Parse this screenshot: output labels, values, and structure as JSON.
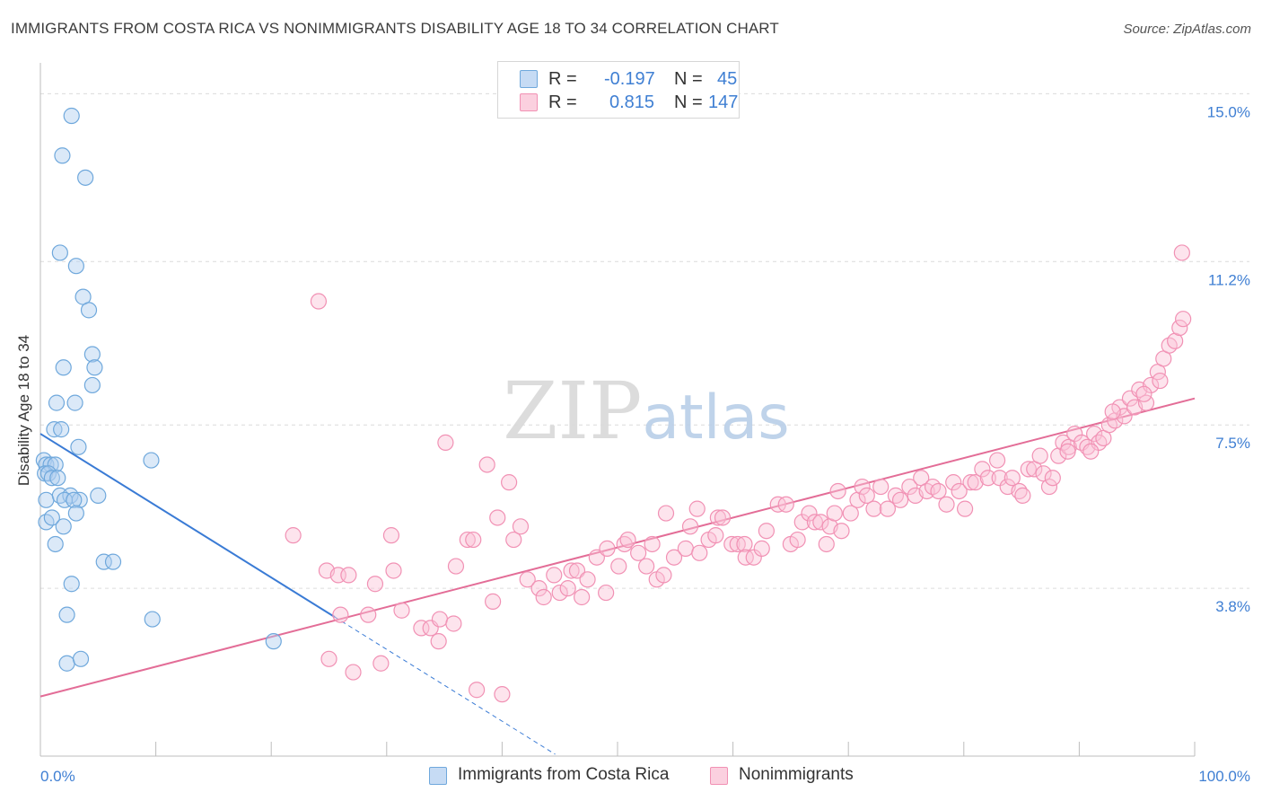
{
  "title": "IMMIGRANTS FROM COSTA RICA VS NONIMMIGRANTS DISABILITY AGE 18 TO 34 CORRELATION CHART",
  "source": "Source: ZipAtlas.com",
  "watermark": "ZIPatlas",
  "legend": {
    "blue": {
      "r_label": "R =",
      "r_value": "-0.197",
      "n_label": "N =",
      "n_value": "45"
    },
    "pink": {
      "r_label": "R =",
      "r_value": "0.815",
      "n_label": "N =",
      "n_value": "147"
    }
  },
  "colors": {
    "blue": "#6fa8dc",
    "blue_line": "#3a7bd5",
    "pink": "#f191b4",
    "pink_line": "#e36d97",
    "tick_label": "#3f7fd3"
  },
  "chart_data": {
    "type": "scatter",
    "xlabel": "",
    "ylabel": "Disability Age 18 to 34",
    "xlim": [
      0,
      100
    ],
    "ylim": [
      0,
      15.7
    ],
    "x_tick_labels": [
      "0.0%",
      "100.0%"
    ],
    "y_ticks": [
      3.8,
      7.5,
      11.2,
      15.0
    ],
    "y_tick_labels": [
      "3.8%",
      "7.5%",
      "11.2%",
      "15.0%"
    ],
    "grid": true,
    "legend_position": "bottom",
    "series": [
      {
        "name": "Immigrants from Costa Rica",
        "color": "#6fa8dc",
        "trend": {
          "x0": 0,
          "y0": 7.3,
          "x1": 25.5,
          "y1": 3.15,
          "dash_to_x": 44.6
        },
        "points": [
          [
            2.7,
            14.5
          ],
          [
            1.9,
            13.6
          ],
          [
            3.9,
            13.1
          ],
          [
            1.7,
            11.4
          ],
          [
            3.1,
            11.1
          ],
          [
            3.7,
            10.4
          ],
          [
            4.2,
            10.1
          ],
          [
            4.5,
            9.1
          ],
          [
            2.0,
            8.8
          ],
          [
            4.7,
            8.8
          ],
          [
            4.5,
            8.4
          ],
          [
            1.4,
            8.0
          ],
          [
            3.0,
            8.0
          ],
          [
            1.2,
            7.4
          ],
          [
            1.8,
            7.4
          ],
          [
            3.3,
            7.0
          ],
          [
            0.3,
            6.7
          ],
          [
            0.5,
            6.6
          ],
          [
            0.9,
            6.6
          ],
          [
            1.3,
            6.6
          ],
          [
            0.4,
            6.4
          ],
          [
            0.7,
            6.4
          ],
          [
            1.0,
            6.3
          ],
          [
            1.5,
            6.3
          ],
          [
            9.6,
            6.7
          ],
          [
            0.5,
            5.8
          ],
          [
            1.7,
            5.9
          ],
          [
            2.6,
            5.9
          ],
          [
            3.4,
            5.8
          ],
          [
            5.0,
            5.9
          ],
          [
            2.1,
            5.8
          ],
          [
            2.9,
            5.8
          ],
          [
            3.1,
            5.5
          ],
          [
            0.5,
            5.3
          ],
          [
            1.0,
            5.4
          ],
          [
            2.0,
            5.2
          ],
          [
            1.3,
            4.8
          ],
          [
            5.5,
            4.4
          ],
          [
            6.3,
            4.4
          ],
          [
            2.7,
            3.9
          ],
          [
            2.3,
            3.2
          ],
          [
            9.7,
            3.1
          ],
          [
            20.2,
            2.6
          ],
          [
            2.3,
            2.1
          ],
          [
            3.5,
            2.2
          ]
        ]
      },
      {
        "name": "Nonimmigrants",
        "color": "#f191b4",
        "trend": {
          "x0": 0,
          "y0": 1.35,
          "x1": 100,
          "y1": 8.1
        },
        "points": [
          [
            24.1,
            10.3
          ],
          [
            98.9,
            11.4
          ],
          [
            21.9,
            5.0
          ],
          [
            24.8,
            4.2
          ],
          [
            25.8,
            4.1
          ],
          [
            26.7,
            4.1
          ],
          [
            25.0,
            2.2
          ],
          [
            26.0,
            3.2
          ],
          [
            27.1,
            1.9
          ],
          [
            28.4,
            3.2
          ],
          [
            29.0,
            3.9
          ],
          [
            29.5,
            2.1
          ],
          [
            30.4,
            5.0
          ],
          [
            30.6,
            4.2
          ],
          [
            31.3,
            3.3
          ],
          [
            33.0,
            2.9
          ],
          [
            33.8,
            2.9
          ],
          [
            34.5,
            2.6
          ],
          [
            34.6,
            3.1
          ],
          [
            35.8,
            3.0
          ],
          [
            36.0,
            4.3
          ],
          [
            35.1,
            7.1
          ],
          [
            37.0,
            4.9
          ],
          [
            37.5,
            4.9
          ],
          [
            37.8,
            1.5
          ],
          [
            38.7,
            6.6
          ],
          [
            39.6,
            5.4
          ],
          [
            39.2,
            3.5
          ],
          [
            40.0,
            1.4
          ],
          [
            40.6,
            6.2
          ],
          [
            41.0,
            4.9
          ],
          [
            41.6,
            5.2
          ],
          [
            42.2,
            4.0
          ],
          [
            43.2,
            3.8
          ],
          [
            43.6,
            3.6
          ],
          [
            44.5,
            4.1
          ],
          [
            45.0,
            3.7
          ],
          [
            45.7,
            3.8
          ],
          [
            46.0,
            4.2
          ],
          [
            46.5,
            4.2
          ],
          [
            46.9,
            3.6
          ],
          [
            47.4,
            4.0
          ],
          [
            48.2,
            4.5
          ],
          [
            49.0,
            3.7
          ],
          [
            49.1,
            4.7
          ],
          [
            50.1,
            4.3
          ],
          [
            50.6,
            4.8
          ],
          [
            50.9,
            4.9
          ],
          [
            51.8,
            4.6
          ],
          [
            52.5,
            4.3
          ],
          [
            53.0,
            4.8
          ],
          [
            53.4,
            4.0
          ],
          [
            54.0,
            4.1
          ],
          [
            54.2,
            5.5
          ],
          [
            54.9,
            4.5
          ],
          [
            55.9,
            4.7
          ],
          [
            56.3,
            5.2
          ],
          [
            56.9,
            5.6
          ],
          [
            57.1,
            4.6
          ],
          [
            57.9,
            4.9
          ],
          [
            58.5,
            5.0
          ],
          [
            58.7,
            5.4
          ],
          [
            59.1,
            5.4
          ],
          [
            59.9,
            4.8
          ],
          [
            60.4,
            4.8
          ],
          [
            61.0,
            4.8
          ],
          [
            61.1,
            4.5
          ],
          [
            61.8,
            4.5
          ],
          [
            62.5,
            4.7
          ],
          [
            62.9,
            5.1
          ],
          [
            63.9,
            5.7
          ],
          [
            64.6,
            5.7
          ],
          [
            65.0,
            4.8
          ],
          [
            65.6,
            4.9
          ],
          [
            66.0,
            5.3
          ],
          [
            66.6,
            5.5
          ],
          [
            67.1,
            5.3
          ],
          [
            67.6,
            5.3
          ],
          [
            68.1,
            4.8
          ],
          [
            68.4,
            5.2
          ],
          [
            68.8,
            5.5
          ],
          [
            69.1,
            6.0
          ],
          [
            69.4,
            5.1
          ],
          [
            70.2,
            5.5
          ],
          [
            70.8,
            5.8
          ],
          [
            71.2,
            6.1
          ],
          [
            71.6,
            5.9
          ],
          [
            72.2,
            5.6
          ],
          [
            72.8,
            6.1
          ],
          [
            73.4,
            5.6
          ],
          [
            74.1,
            5.9
          ],
          [
            74.5,
            5.8
          ],
          [
            75.3,
            6.1
          ],
          [
            75.8,
            5.9
          ],
          [
            76.3,
            6.3
          ],
          [
            76.8,
            6.0
          ],
          [
            77.3,
            6.1
          ],
          [
            77.8,
            6.0
          ],
          [
            78.5,
            5.7
          ],
          [
            79.1,
            6.2
          ],
          [
            79.6,
            6.0
          ],
          [
            80.1,
            5.6
          ],
          [
            80.6,
            6.2
          ],
          [
            81.0,
            6.2
          ],
          [
            81.6,
            6.5
          ],
          [
            82.1,
            6.3
          ],
          [
            82.9,
            6.7
          ],
          [
            83.1,
            6.3
          ],
          [
            83.8,
            6.1
          ],
          [
            84.2,
            6.3
          ],
          [
            84.8,
            6.0
          ],
          [
            85.1,
            5.9
          ],
          [
            85.6,
            6.5
          ],
          [
            86.1,
            6.5
          ],
          [
            86.6,
            6.8
          ],
          [
            86.9,
            6.4
          ],
          [
            87.4,
            6.1
          ],
          [
            87.7,
            6.3
          ],
          [
            88.2,
            6.8
          ],
          [
            88.6,
            7.1
          ],
          [
            89.1,
            7.0
          ],
          [
            89.6,
            7.3
          ],
          [
            90.2,
            7.1
          ],
          [
            90.7,
            7.0
          ],
          [
            91.3,
            7.3
          ],
          [
            91.7,
            7.1
          ],
          [
            92.1,
            7.2
          ],
          [
            92.6,
            7.5
          ],
          [
            93.1,
            7.6
          ],
          [
            93.5,
            7.9
          ],
          [
            93.9,
            7.7
          ],
          [
            94.4,
            8.1
          ],
          [
            94.8,
            7.9
          ],
          [
            95.2,
            8.3
          ],
          [
            95.8,
            8.0
          ],
          [
            96.2,
            8.4
          ],
          [
            96.8,
            8.7
          ],
          [
            97.3,
            9.0
          ],
          [
            97.8,
            9.3
          ],
          [
            98.3,
            9.4
          ],
          [
            98.7,
            9.7
          ],
          [
            99.0,
            9.9
          ],
          [
            97.0,
            8.5
          ],
          [
            95.6,
            8.2
          ],
          [
            92.9,
            7.8
          ],
          [
            91.0,
            6.9
          ],
          [
            89.0,
            6.9
          ]
        ]
      }
    ]
  }
}
